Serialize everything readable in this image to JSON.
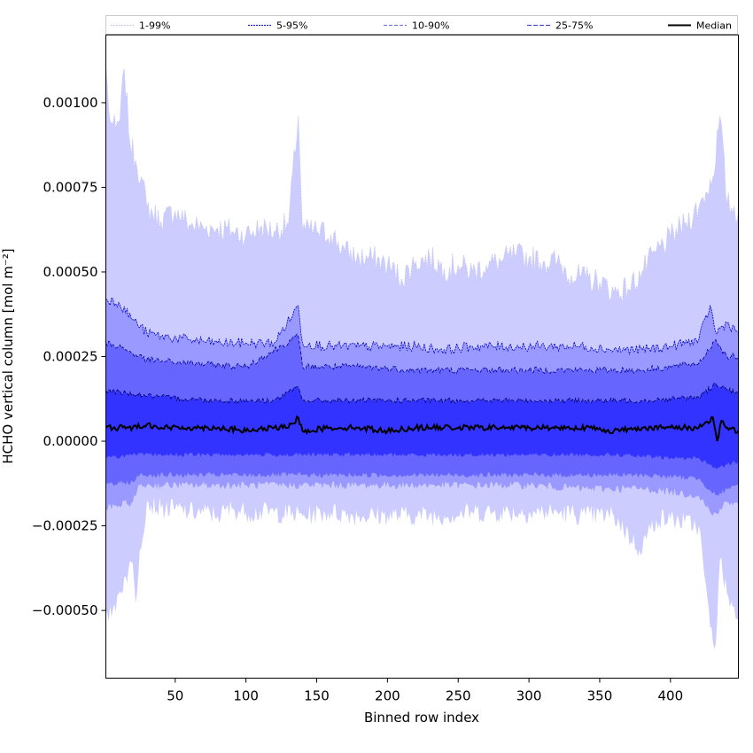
{
  "chart_data": {
    "type": "area",
    "xlabel": "Binned row index",
    "ylabel": "HCHO vertical column [mol m⁻²]",
    "xlim": [
      1,
      448
    ],
    "ylim": [
      -0.0007,
      0.0012
    ],
    "x_ticks": [
      50,
      100,
      150,
      200,
      250,
      300,
      350,
      400
    ],
    "x_tick_labels": [
      "50",
      "100",
      "150",
      "200",
      "250",
      "300",
      "350",
      "400"
    ],
    "y_ticks": [
      -0.0005,
      -0.00025,
      0.0,
      0.00025,
      0.0005,
      0.00075,
      0.001
    ],
    "y_tick_labels": [
      "−0.00050",
      "−0.00025",
      "0.00000",
      "0.00025",
      "0.00050",
      "0.00075",
      "0.00100"
    ],
    "grid": false,
    "legend_position": "top (above plot)",
    "series": [
      {
        "name": "1-99%",
        "fill": "#ccccff",
        "line": "#c8c8f0",
        "upper": {
          "x": [
            1,
            3,
            5,
            8,
            11,
            14,
            18,
            22,
            26,
            30,
            40,
            50,
            60,
            70,
            80,
            90,
            100,
            110,
            120,
            130,
            137,
            140,
            150,
            160,
            170,
            180,
            190,
            200,
            210,
            220,
            230,
            240,
            250,
            260,
            270,
            280,
            290,
            300,
            310,
            320,
            330,
            340,
            350,
            360,
            370,
            380,
            390,
            400,
            410,
            420,
            430,
            435,
            440,
            448
          ],
          "y": [
            0.00111,
            0.00098,
            0.00094,
            0.00092,
            0.00095,
            0.0011,
            0.00088,
            0.00083,
            0.00078,
            0.00069,
            0.00065,
            0.00068,
            0.00064,
            0.00063,
            0.00063,
            0.00062,
            0.00061,
            0.00063,
            0.00062,
            0.00064,
            0.00096,
            0.00062,
            0.00062,
            0.00061,
            0.00056,
            0.00054,
            0.00054,
            0.00052,
            0.00048,
            0.00053,
            0.00054,
            0.00051,
            0.00052,
            0.0005,
            0.00052,
            0.00053,
            0.00055,
            0.00054,
            0.00053,
            0.00053,
            0.00049,
            0.00048,
            0.00047,
            0.00044,
            0.00045,
            0.0005,
            0.00056,
            0.0006,
            0.00064,
            0.00069,
            0.00078,
            0.00096,
            0.0007,
            0.00068
          ]
        },
        "lower": {
          "x": [
            1,
            5,
            10,
            15,
            20,
            22,
            25,
            30,
            40,
            50,
            60,
            70,
            80,
            90,
            100,
            120,
            140,
            160,
            180,
            200,
            220,
            240,
            260,
            280,
            300,
            320,
            340,
            360,
            378,
            390,
            400,
            410,
            420,
            428,
            432,
            435,
            440,
            448
          ],
          "y": [
            -0.0005,
            -0.00052,
            -0.00045,
            -0.0004,
            -0.00036,
            -0.00048,
            -0.00032,
            -0.00018,
            -0.0002,
            -0.0002,
            -0.00021,
            -0.00021,
            -0.00022,
            -0.0002,
            -0.00021,
            -0.00021,
            -0.00022,
            -0.00021,
            -0.00022,
            -0.00022,
            -0.00022,
            -0.00022,
            -0.00021,
            -0.00021,
            -0.00021,
            -0.00021,
            -0.00022,
            -0.00022,
            -0.00032,
            -0.00023,
            -0.00023,
            -0.00024,
            -0.00025,
            -0.00055,
            -0.0006,
            -0.00035,
            -0.00045,
            -0.00053
          ]
        }
      },
      {
        "name": "5-95%",
        "fill": "#9999ff",
        "line": "#0000cc",
        "upper": {
          "x": [
            1,
            10,
            20,
            30,
            40,
            60,
            80,
            100,
            120,
            137,
            140,
            160,
            180,
            200,
            220,
            240,
            260,
            280,
            300,
            320,
            340,
            360,
            380,
            400,
            420,
            428,
            432,
            440,
            448
          ],
          "y": [
            0.00042,
            0.00041,
            0.00036,
            0.00032,
            0.00031,
            0.0003,
            0.00029,
            0.00029,
            0.00029,
            0.0004,
            0.00029,
            0.00028,
            0.00028,
            0.00028,
            0.00028,
            0.00027,
            0.00028,
            0.00028,
            0.00028,
            0.00028,
            0.00028,
            0.00027,
            0.00027,
            0.00028,
            0.0003,
            0.0004,
            0.00032,
            0.00035,
            0.00032
          ]
        },
        "lower": {
          "x": [
            1,
            10,
            20,
            25,
            30,
            60,
            100,
            140,
            180,
            220,
            260,
            300,
            340,
            380,
            400,
            420,
            430,
            440,
            448
          ],
          "y": [
            -0.0002,
            -0.00019,
            -0.00018,
            -0.00013,
            -0.00013,
            -0.00013,
            -0.00013,
            -0.00013,
            -0.00013,
            -0.00013,
            -0.00013,
            -0.00013,
            -0.00014,
            -0.00014,
            -0.00015,
            -0.00016,
            -0.00022,
            -0.00018,
            -0.00019
          ]
        }
      },
      {
        "name": "10-90%",
        "fill": "#6666ff",
        "line": "#000099",
        "upper": {
          "x": [
            1,
            10,
            20,
            30,
            60,
            100,
            137,
            140,
            180,
            220,
            260,
            300,
            340,
            380,
            420,
            432,
            440,
            448
          ],
          "y": [
            0.00029,
            0.00028,
            0.00026,
            0.00024,
            0.00023,
            0.00022,
            0.00031,
            0.00022,
            0.00022,
            0.00021,
            0.00021,
            0.00021,
            0.00021,
            0.00021,
            0.00023,
            0.0003,
            0.00025,
            0.00025
          ]
        },
        "lower": {
          "x": [
            1,
            20,
            25,
            60,
            100,
            140,
            180,
            220,
            260,
            300,
            340,
            380,
            420,
            432,
            448
          ],
          "y": [
            -0.00013,
            -0.00012,
            -0.0001,
            -0.0001,
            -0.0001,
            -0.0001,
            -0.0001,
            -0.0001,
            -0.0001,
            -0.0001,
            -0.0001,
            -0.0001,
            -0.00011,
            -0.00016,
            -0.00013
          ]
        }
      },
      {
        "name": "25-75%",
        "fill": "#3333ff",
        "line": "#000066",
        "upper": {
          "x": [
            1,
            20,
            40,
            80,
            120,
            137,
            140,
            180,
            220,
            260,
            300,
            340,
            380,
            420,
            432,
            448
          ],
          "y": [
            0.00015,
            0.00014,
            0.00013,
            0.00012,
            0.00012,
            0.00016,
            0.00012,
            0.00012,
            0.00012,
            0.00012,
            0.00012,
            0.00012,
            0.00012,
            0.00013,
            0.00017,
            0.00014
          ]
        },
        "lower": {
          "x": [
            1,
            20,
            40,
            80,
            120,
            160,
            200,
            240,
            280,
            320,
            360,
            400,
            420,
            432,
            448
          ],
          "y": [
            -5e-05,
            -4e-05,
            -4e-05,
            -4e-05,
            -4e-05,
            -4e-05,
            -4e-05,
            -4e-05,
            -4e-05,
            -4e-05,
            -4e-05,
            -5e-05,
            -5e-05,
            -8e-05,
            -6e-05
          ]
        }
      },
      {
        "name": "Median",
        "line": "#000000",
        "x": [
          1,
          10,
          20,
          30,
          40,
          60,
          80,
          100,
          120,
          130,
          137,
          140,
          160,
          180,
          200,
          220,
          240,
          260,
          280,
          300,
          320,
          340,
          360,
          380,
          400,
          420,
          430,
          433,
          436,
          440,
          448
        ],
        "y": [
          4e-05,
          4e-05,
          4e-05,
          5e-05,
          4e-05,
          4e-05,
          4e-05,
          3e-05,
          4e-05,
          4e-05,
          7e-05,
          3e-05,
          4e-05,
          4e-05,
          3e-05,
          4e-05,
          4e-05,
          4e-05,
          4e-05,
          4e-05,
          4e-05,
          4e-05,
          3e-05,
          4e-05,
          4e-05,
          4e-05,
          7e-05,
          0.0,
          6e-05,
          4e-05,
          3e-05
        ]
      }
    ],
    "legend": [
      {
        "label": "1-99%",
        "color": "#c8c8f0",
        "dash": "2,1"
      },
      {
        "label": "5-95%",
        "color": "#0000cc",
        "dash": "2,1"
      },
      {
        "label": "10-90%",
        "color": "#6666ee",
        "dash": "4,2"
      },
      {
        "label": "25-75%",
        "color": "#3333cc",
        "dash": "5,2"
      },
      {
        "label": "Median",
        "color": "#000000",
        "dash": ""
      }
    ]
  }
}
